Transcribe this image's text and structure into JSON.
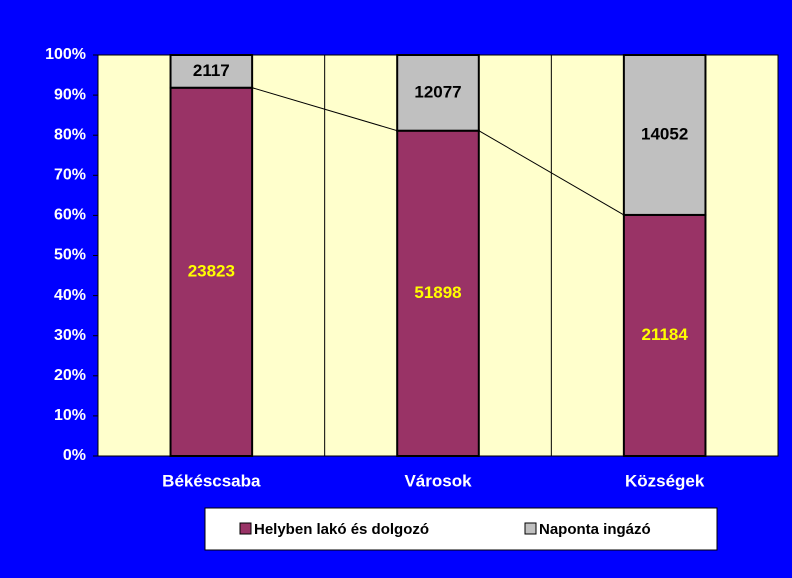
{
  "chart_data": {
    "type": "bar",
    "stacking": "percent",
    "categories": [
      "Békéscsaba",
      "Városok",
      "Községek"
    ],
    "series": [
      {
        "name": "Helyben lakó és dolgozó",
        "color": "#993366",
        "label_color": "#ffff00",
        "values": [
          23823,
          51898,
          21184
        ]
      },
      {
        "name": "Naponta ingázó",
        "color": "#c0c0c0",
        "label_color": "#000000",
        "values": [
          2117,
          12077,
          14052
        ]
      }
    ],
    "ylim": [
      0,
      100
    ],
    "yticks": [
      {
        "value": 0,
        "label": "0%"
      },
      {
        "value": 10,
        "label": "10%"
      },
      {
        "value": 20,
        "label": "20%"
      },
      {
        "value": 30,
        "label": "30%"
      },
      {
        "value": 40,
        "label": "40%"
      },
      {
        "value": 50,
        "label": "50%"
      },
      {
        "value": 60,
        "label": "60%"
      },
      {
        "value": 70,
        "label": "70%"
      },
      {
        "value": 80,
        "label": "80%"
      },
      {
        "value": 90,
        "label": "90%"
      },
      {
        "value": 100,
        "label": "100%"
      }
    ],
    "grid": false,
    "series_lines": true,
    "plot_background": "#ffffcc",
    "legend": "bottom"
  }
}
